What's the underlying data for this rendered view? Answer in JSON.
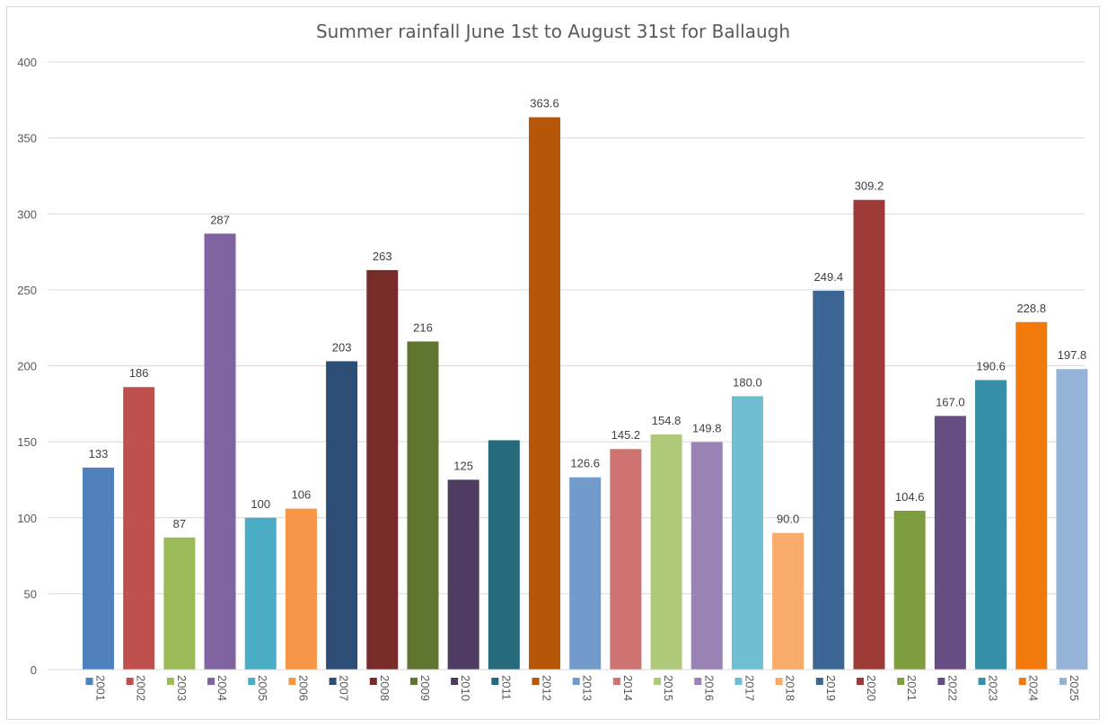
{
  "chart_data": {
    "type": "bar",
    "title": "Summer rainfall June 1st to August 31st for Ballaugh",
    "xlabel": "",
    "ylabel": "",
    "ylim": [
      0,
      400
    ],
    "yticks": [
      0,
      50,
      100,
      150,
      200,
      250,
      300,
      350,
      400
    ],
    "grid": true,
    "categories": [
      "2001",
      "2002",
      "2003",
      "2004",
      "2005",
      "2006",
      "2007",
      "2008",
      "2009",
      "2010",
      "2011",
      "2012",
      "2013",
      "2014",
      "2015",
      "2016",
      "2017",
      "2018",
      "2019",
      "2020",
      "2021",
      "2022",
      "2023",
      "2024",
      "2025"
    ],
    "values": [
      133,
      186,
      87,
      287,
      100,
      106,
      203,
      263,
      216,
      125,
      151,
      363.6,
      126.6,
      145.2,
      154.8,
      149.8,
      180.0,
      90.0,
      249.4,
      309.2,
      104.6,
      167.0,
      190.6,
      228.8,
      197.8
    ],
    "data_labels": [
      "133",
      "186",
      "87",
      "287",
      "100",
      "106",
      "203",
      "263",
      "216",
      "125",
      "",
      "363.6",
      "126.6",
      "145.2",
      "154.8",
      "149.8",
      "180.0",
      "90.0",
      "249.4",
      "309.2",
      "104.6",
      "167.0",
      "190.6",
      "228.8",
      "197.8"
    ],
    "colors": [
      "#4f81bd",
      "#c0504d",
      "#9bbb59",
      "#8064a2",
      "#4bacc6",
      "#f79646",
      "#2c4d75",
      "#772c2a",
      "#5f7530",
      "#4d3b62",
      "#276a7c",
      "#b65708",
      "#729aca",
      "#cd7371",
      "#afc97a",
      "#9983b5",
      "#6fbdd1",
      "#f9ab6b",
      "#3a6595",
      "#9e3b38",
      "#7e9c40",
      "#664e82",
      "#358fa6",
      "#f27a0c",
      "#95b3d7"
    ]
  }
}
